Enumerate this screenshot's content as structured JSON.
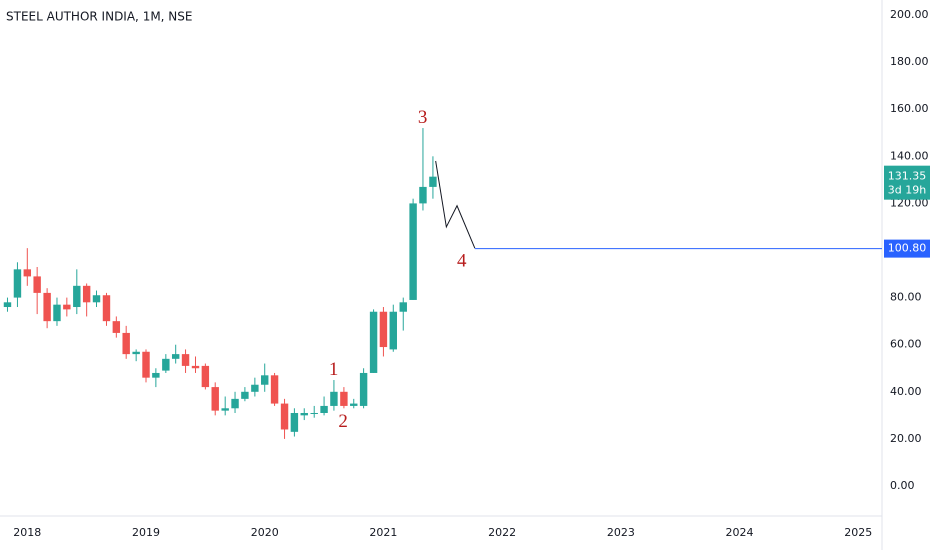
{
  "chart_data": {
    "type": "candlestick",
    "title": "STEEL AUTHOR INDIA, 1M, NSE",
    "x": [
      2017.833,
      2017.917,
      2018.0,
      2018.083,
      2018.167,
      2018.25,
      2018.333,
      2018.417,
      2018.5,
      2018.583,
      2018.667,
      2018.75,
      2018.833,
      2018.917,
      2019.0,
      2019.083,
      2019.167,
      2019.25,
      2019.333,
      2019.417,
      2019.5,
      2019.583,
      2019.667,
      2019.75,
      2019.833,
      2019.917,
      2020.0,
      2020.083,
      2020.167,
      2020.25,
      2020.333,
      2020.417,
      2020.5,
      2020.583,
      2020.667,
      2020.75,
      2020.833,
      2020.917,
      2021.0,
      2021.083,
      2021.167,
      2021.25,
      2021.333,
      2021.417
    ],
    "open": [
      76,
      80,
      92,
      89,
      82,
      70,
      77,
      76,
      85,
      78,
      81,
      70,
      65,
      56,
      57,
      46,
      49,
      54,
      56,
      51,
      51,
      42,
      32,
      33,
      37,
      40,
      43,
      47,
      35,
      23,
      30,
      31,
      31,
      34,
      40,
      34,
      34,
      48,
      74,
      58,
      74,
      79,
      120,
      127
    ],
    "high": [
      80,
      95,
      101,
      93,
      84,
      80,
      80,
      92,
      86,
      83,
      82,
      72,
      68,
      58,
      58,
      50,
      56,
      60,
      58,
      55,
      52,
      44,
      38,
      40,
      42,
      46,
      52,
      48,
      37,
      33,
      33,
      34,
      38,
      45,
      42,
      37,
      50,
      75,
      76,
      77,
      80,
      122,
      152,
      140
    ],
    "low": [
      74,
      76,
      85,
      73,
      67,
      68,
      72,
      73,
      72,
      76,
      68,
      63,
      54,
      53,
      44,
      42,
      48,
      52,
      48,
      48,
      41,
      30,
      30,
      31,
      36,
      38,
      40,
      34,
      20,
      21,
      28,
      29,
      30,
      32,
      33,
      33,
      33,
      48,
      55,
      57,
      66,
      79,
      117,
      122
    ],
    "close": [
      78,
      92,
      89,
      82,
      70,
      77,
      75,
      85,
      78,
      81,
      70,
      65,
      56,
      57,
      46,
      48,
      54,
      56,
      51,
      50,
      42,
      32,
      33,
      37,
      40,
      43,
      47,
      35,
      24,
      31,
      31,
      31,
      34,
      40,
      34,
      35,
      48,
      74,
      59,
      74,
      78,
      120,
      127,
      131.35
    ],
    "up_color": "#26a69a",
    "down_color": "#ef5350",
    "xlim": [
      2017.77,
      2025.2
    ],
    "xticks": [
      2018,
      2019,
      2020,
      2021,
      2022,
      2023,
      2024,
      2025
    ],
    "ylim": [
      0,
      200
    ],
    "yticks": [
      {
        "value": 0,
        "label": "0.00"
      },
      {
        "value": 20,
        "label": "20.00"
      },
      {
        "value": 40,
        "label": "40.00"
      },
      {
        "value": 60,
        "label": "60.00"
      },
      {
        "value": 80,
        "label": "80.00"
      },
      {
        "value": 100,
        "label": "100.00"
      },
      {
        "value": 120,
        "label": "120.00"
      },
      {
        "value": 140,
        "label": "140.00"
      },
      {
        "value": 160,
        "label": "160.00"
      },
      {
        "value": 180,
        "label": "180.00"
      },
      {
        "value": 200,
        "label": "200.00"
      }
    ],
    "grid": false,
    "last_price": {
      "value": 131.35,
      "label": "131.35",
      "countdown": "3d 19h",
      "color": "#26a69a"
    },
    "level": {
      "value": 100.8,
      "label": "100.80",
      "color": "#2962ff",
      "x_start": 2021.77
    },
    "wave_path": {
      "x": [
        2021.44,
        2021.53,
        2021.62,
        2021.77
      ],
      "y": [
        138,
        110,
        119,
        101
      ]
    },
    "annotations": [
      {
        "text": "1",
        "x": 2020.58,
        "y": 49
      },
      {
        "text": "2",
        "x": 2020.66,
        "y": 27
      },
      {
        "text": "3",
        "x": 2021.33,
        "y": 156
      },
      {
        "text": "4",
        "x": 2021.66,
        "y": 95
      }
    ]
  }
}
